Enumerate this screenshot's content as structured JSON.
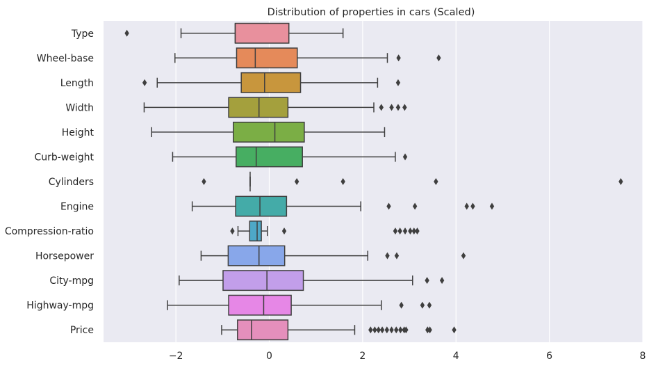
{
  "chart_data": {
    "type": "boxplot",
    "orientation": "horizontal",
    "title": "Distribution of properties in cars (Scaled)",
    "xlabel": "",
    "ylabel": "",
    "xlim": [
      -3.55,
      8.0
    ],
    "xticks": [
      -2,
      0,
      2,
      4,
      6,
      8
    ],
    "grid": true,
    "background": "#EAEAF2",
    "grid_color": "#FFFFFF",
    "line_color": "#3F3F3F",
    "categories": [
      "Type",
      "Wheel-base",
      "Length",
      "Width",
      "Height",
      "Curb-weight",
      "Cylinders",
      "Engine",
      "Compression-ratio",
      "Horsepower",
      "City-mpg",
      "Highway-mpg",
      "Price"
    ],
    "boxes": [
      {
        "label": "Type",
        "color": "#E8909D",
        "whisker_low": -1.89,
        "q1": -0.73,
        "median": -0.73,
        "q3": 0.42,
        "whisker_high": 1.58,
        "outliers": [
          -3.05
        ]
      },
      {
        "label": "Wheel-base",
        "color": "#E58A5A",
        "whisker_low": -2.02,
        "q1": -0.7,
        "median": -0.3,
        "q3": 0.6,
        "whisker_high": 2.53,
        "outliers": [
          2.77,
          3.63
        ]
      },
      {
        "label": "Length",
        "color": "#C8963D",
        "whisker_low": -2.4,
        "q1": -0.6,
        "median": -0.1,
        "q3": 0.67,
        "whisker_high": 2.32,
        "outliers": [
          -2.67,
          2.76
        ]
      },
      {
        "label": "Width",
        "color": "#A4A03D",
        "whisker_low": -2.68,
        "q1": -0.87,
        "median": -0.22,
        "q3": 0.4,
        "whisker_high": 2.24,
        "outliers": [
          2.4,
          2.62,
          2.76,
          2.9
        ]
      },
      {
        "label": "Height",
        "color": "#7BAE45",
        "whisker_low": -2.52,
        "q1": -0.77,
        "median": 0.12,
        "q3": 0.75,
        "whisker_high": 2.47,
        "outliers": []
      },
      {
        "label": "Curb-weight",
        "color": "#47AE62",
        "whisker_low": -2.07,
        "q1": -0.71,
        "median": -0.28,
        "q3": 0.71,
        "whisker_high": 2.7,
        "outliers": [
          2.91
        ]
      },
      {
        "label": "Cylinders",
        "color": "#49AD8A",
        "whisker_low": -0.41,
        "q1": -0.41,
        "median": -0.41,
        "q3": -0.41,
        "whisker_high": -0.41,
        "outliers": [
          -1.4,
          0.59,
          1.58,
          3.57,
          7.53
        ]
      },
      {
        "label": "Engine",
        "color": "#44ABA8",
        "whisker_low": -1.65,
        "q1": -0.72,
        "median": -0.2,
        "q3": 0.37,
        "whisker_high": 1.96,
        "outliers": [
          2.56,
          3.12,
          4.23,
          4.36,
          4.77
        ]
      },
      {
        "label": "Compression-ratio",
        "color": "#4EA8C7",
        "whisker_low": -0.67,
        "q1": -0.42,
        "median": -0.26,
        "q3": -0.17,
        "whisker_high": -0.04,
        "outliers": [
          -0.79,
          0.32,
          2.7,
          2.8,
          2.91,
          3.02,
          3.1,
          3.17
        ]
      },
      {
        "label": "Horsepower",
        "color": "#88A7EA",
        "whisker_low": -1.46,
        "q1": -0.88,
        "median": -0.22,
        "q3": 0.33,
        "whisker_high": 2.11,
        "outliers": [
          2.53,
          2.73,
          4.16
        ]
      },
      {
        "label": "City-mpg",
        "color": "#C29EEA",
        "whisker_low": -1.93,
        "q1": -0.99,
        "median": -0.05,
        "q3": 0.73,
        "whisker_high": 3.07,
        "outliers": [
          3.38,
          3.7
        ]
      },
      {
        "label": "Highway-mpg",
        "color": "#E687E6",
        "whisker_low": -2.18,
        "q1": -0.87,
        "median": -0.12,
        "q3": 0.47,
        "whisker_high": 2.4,
        "outliers": [
          2.83,
          3.28,
          3.43
        ]
      },
      {
        "label": "Price",
        "color": "#E58FBC",
        "whisker_low": -1.02,
        "q1": -0.68,
        "median": -0.38,
        "q3": 0.4,
        "whisker_high": 1.83,
        "outliers": [
          2.17,
          2.26,
          2.34,
          2.42,
          2.52,
          2.62,
          2.72,
          2.81,
          2.89,
          2.93,
          3.39,
          3.44,
          3.96
        ]
      }
    ]
  }
}
